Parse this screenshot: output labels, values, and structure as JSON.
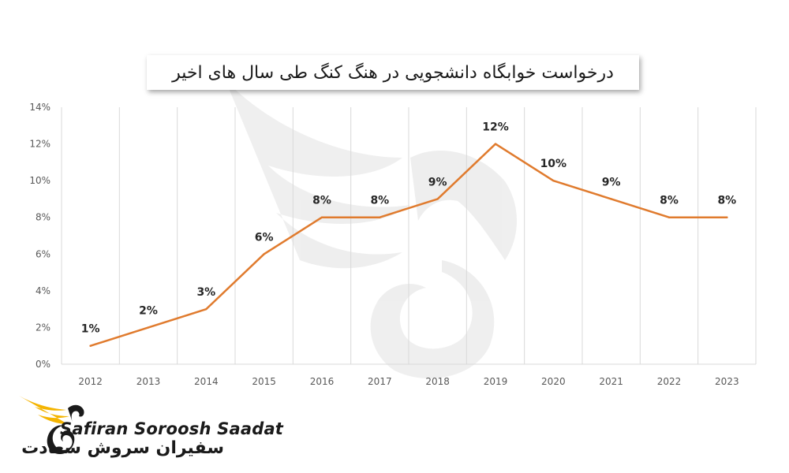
{
  "chart_data": {
    "type": "line",
    "title": "درخواست خوابگاه دانشجویی در هنگ کنگ طی سال های اخیر",
    "xlabel": "",
    "ylabel": "",
    "categories": [
      "2012",
      "2013",
      "2014",
      "2015",
      "2016",
      "2017",
      "2018",
      "2019",
      "2020",
      "2021",
      "2022",
      "2023"
    ],
    "series": [
      {
        "values": [
          1,
          2,
          3,
          6,
          8,
          8,
          9,
          12,
          10,
          9,
          8,
          8
        ],
        "data_labels": [
          "1%",
          "2%",
          "3%",
          "6%",
          "8%",
          "8%",
          "9%",
          "12%",
          "10%",
          "9%",
          "8%",
          "8%"
        ],
        "color": "#E07B2E"
      }
    ],
    "ylim": [
      0,
      14
    ],
    "y_ticks": [
      "0%",
      "2%",
      "4%",
      "6%",
      "8%",
      "10%",
      "12%",
      "14%"
    ],
    "grid": "vertical",
    "legend": "none"
  },
  "logo": {
    "name_en": "Safiran Soroosh Saadat",
    "name_fa": "سفیران سروش سعادت",
    "accent_color": "#F4B400",
    "icon": "swan-wing-logo-icon"
  },
  "watermark": {
    "icon": "swan-wing-watermark-icon"
  }
}
